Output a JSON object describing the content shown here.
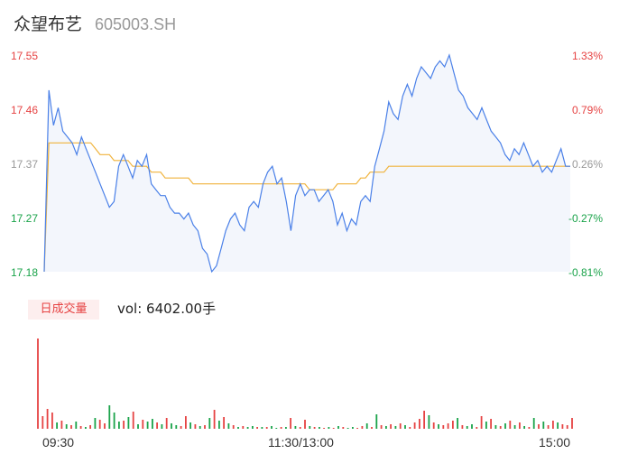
{
  "header": {
    "name": "众望布艺",
    "code": "605003.SH"
  },
  "colors": {
    "up": "#e64343",
    "down": "#1aa34a",
    "neutral": "#999999",
    "price_line": "#4a80e8",
    "avg_line": "#f0b33c"
  },
  "volume": {
    "badge": "日成交量",
    "text": "vol: 6402.00手"
  },
  "chart_data": {
    "type": "line",
    "title": "",
    "xlabel": "",
    "ylabel": "",
    "ylim": [
      17.18,
      17.55
    ],
    "y_ticks": [
      "17.55",
      "17.46",
      "17.37",
      "17.27",
      "17.18"
    ],
    "pct_ticks": [
      "1.33%",
      "0.79%",
      "0.26%",
      "-0.27%",
      "-0.81%"
    ],
    "x_ticks": [
      "09:30",
      "11:30/13:00",
      "15:00"
    ],
    "series": [
      {
        "name": "",
        "values": [
          17.18,
          17.49,
          17.43,
          17.46,
          17.42,
          17.41,
          17.4,
          17.38,
          17.41,
          17.39,
          17.37,
          17.35,
          17.33,
          17.31,
          17.29,
          17.3,
          17.36,
          17.38,
          17.36,
          17.34,
          17.37,
          17.36,
          17.38,
          17.33,
          17.32,
          17.31,
          17.31,
          17.29,
          17.28,
          17.28,
          17.27,
          17.28,
          17.26,
          17.25,
          17.22,
          17.21,
          17.18,
          17.19,
          17.22,
          17.25,
          17.27,
          17.28,
          17.26,
          17.25,
          17.29,
          17.3,
          17.29,
          17.33,
          17.35,
          17.36,
          17.33,
          17.34,
          17.3,
          17.25,
          17.31,
          17.33,
          17.31,
          17.32,
          17.32,
          17.3,
          17.31,
          17.32,
          17.3,
          17.26,
          17.28,
          17.25,
          17.27,
          17.26,
          17.3,
          17.31,
          17.3,
          17.36,
          17.39,
          17.42,
          17.47,
          17.45,
          17.44,
          17.48,
          17.5,
          17.48,
          17.51,
          17.53,
          17.52,
          17.51,
          17.53,
          17.54,
          17.53,
          17.55,
          17.52,
          17.49,
          17.48,
          17.46,
          17.45,
          17.44,
          17.46,
          17.44,
          17.42,
          17.41,
          17.4,
          17.38,
          17.37,
          17.39,
          17.38,
          17.4,
          17.38,
          17.36,
          17.37,
          17.35,
          17.36,
          17.35,
          17.37,
          17.39,
          17.36,
          17.36
        ]
      },
      {
        "name": "",
        "values": [
          17.18,
          17.4,
          17.4,
          17.4,
          17.4,
          17.4,
          17.4,
          17.4,
          17.4,
          17.4,
          17.4,
          17.39,
          17.38,
          17.38,
          17.38,
          17.37,
          17.37,
          17.37,
          17.37,
          17.36,
          17.36,
          17.36,
          17.36,
          17.35,
          17.35,
          17.35,
          17.34,
          17.34,
          17.34,
          17.34,
          17.34,
          17.34,
          17.33,
          17.33,
          17.33,
          17.33,
          17.33,
          17.33,
          17.33,
          17.33,
          17.33,
          17.33,
          17.33,
          17.33,
          17.33,
          17.33,
          17.33,
          17.33,
          17.33,
          17.33,
          17.33,
          17.33,
          17.33,
          17.33,
          17.33,
          17.33,
          17.33,
          17.32,
          17.32,
          17.32,
          17.32,
          17.32,
          17.32,
          17.33,
          17.33,
          17.33,
          17.33,
          17.33,
          17.34,
          17.34,
          17.35,
          17.35,
          17.35,
          17.35,
          17.36,
          17.36,
          17.36,
          17.36,
          17.36,
          17.36,
          17.36,
          17.36,
          17.36,
          17.36,
          17.36,
          17.36,
          17.36,
          17.36,
          17.36,
          17.36,
          17.36,
          17.36,
          17.36,
          17.36,
          17.36,
          17.36,
          17.36,
          17.36,
          17.36,
          17.36,
          17.36,
          17.36,
          17.36,
          17.36,
          17.36,
          17.36,
          17.36,
          17.36,
          17.36,
          17.36,
          17.36,
          17.36,
          17.36,
          17.36
        ]
      }
    ],
    "volume_bars": [
      {
        "v": 100,
        "d": 1
      },
      {
        "v": 14,
        "d": 1
      },
      {
        "v": 22,
        "d": 1
      },
      {
        "v": 18,
        "d": 1
      },
      {
        "v": 7,
        "d": -1
      },
      {
        "v": 9,
        "d": 1
      },
      {
        "v": 5,
        "d": -1
      },
      {
        "v": 4,
        "d": 1
      },
      {
        "v": 8,
        "d": -1
      },
      {
        "v": 3,
        "d": 1
      },
      {
        "v": 2,
        "d": -1
      },
      {
        "v": 4,
        "d": 1
      },
      {
        "v": 12,
        "d": -1
      },
      {
        "v": 10,
        "d": 1
      },
      {
        "v": 6,
        "d": 1
      },
      {
        "v": 26,
        "d": -1
      },
      {
        "v": 18,
        "d": -1
      },
      {
        "v": 8,
        "d": -1
      },
      {
        "v": 9,
        "d": 1
      },
      {
        "v": 13,
        "d": -1
      },
      {
        "v": 19,
        "d": 1
      },
      {
        "v": 5,
        "d": -1
      },
      {
        "v": 10,
        "d": 1
      },
      {
        "v": 8,
        "d": -1
      },
      {
        "v": 11,
        "d": -1
      },
      {
        "v": 7,
        "d": 1
      },
      {
        "v": 5,
        "d": -1
      },
      {
        "v": 12,
        "d": 1
      },
      {
        "v": 6,
        "d": -1
      },
      {
        "v": 4,
        "d": -1
      },
      {
        "v": 3,
        "d": 1
      },
      {
        "v": 14,
        "d": 1
      },
      {
        "v": 7,
        "d": -1
      },
      {
        "v": 5,
        "d": 1
      },
      {
        "v": 3,
        "d": -1
      },
      {
        "v": 4,
        "d": 1
      },
      {
        "v": 12,
        "d": -1
      },
      {
        "v": 21,
        "d": 1
      },
      {
        "v": 9,
        "d": -1
      },
      {
        "v": 13,
        "d": 1
      },
      {
        "v": 6,
        "d": -1
      },
      {
        "v": 4,
        "d": 1
      },
      {
        "v": 2,
        "d": -1
      },
      {
        "v": 3,
        "d": 1
      },
      {
        "v": 2,
        "d": -1
      },
      {
        "v": 3,
        "d": -1
      },
      {
        "v": 2,
        "d": 1
      },
      {
        "v": 2,
        "d": -1
      },
      {
        "v": 2,
        "d": 1
      },
      {
        "v": 3,
        "d": -1
      },
      {
        "v": 1,
        "d": -1
      },
      {
        "v": 2,
        "d": 1
      },
      {
        "v": 2,
        "d": -1
      },
      {
        "v": 12,
        "d": 1
      },
      {
        "v": 3,
        "d": -1
      },
      {
        "v": 2,
        "d": 1
      },
      {
        "v": 10,
        "d": 1
      },
      {
        "v": 3,
        "d": -1
      },
      {
        "v": 2,
        "d": 1
      },
      {
        "v": 2,
        "d": -1
      },
      {
        "v": 1,
        "d": 1
      },
      {
        "v": 2,
        "d": -1
      },
      {
        "v": 1,
        "d": 1
      },
      {
        "v": 3,
        "d": -1
      },
      {
        "v": 2,
        "d": 1
      },
      {
        "v": 1,
        "d": -1
      },
      {
        "v": 2,
        "d": -1
      },
      {
        "v": 1,
        "d": 1
      },
      {
        "v": 3,
        "d": 1
      },
      {
        "v": 6,
        "d": -1
      },
      {
        "v": 2,
        "d": 1
      },
      {
        "v": 16,
        "d": -1
      },
      {
        "v": 4,
        "d": 1
      },
      {
        "v": 3,
        "d": -1
      },
      {
        "v": 5,
        "d": 1
      },
      {
        "v": 3,
        "d": -1
      },
      {
        "v": 6,
        "d": 1
      },
      {
        "v": 4,
        "d": -1
      },
      {
        "v": 2,
        "d": 1
      },
      {
        "v": 7,
        "d": 1
      },
      {
        "v": 11,
        "d": 1
      },
      {
        "v": 20,
        "d": 1
      },
      {
        "v": 15,
        "d": -1
      },
      {
        "v": 7,
        "d": 1
      },
      {
        "v": 5,
        "d": -1
      },
      {
        "v": 4,
        "d": 1
      },
      {
        "v": 6,
        "d": 1
      },
      {
        "v": 9,
        "d": 1
      },
      {
        "v": 12,
        "d": -1
      },
      {
        "v": 4,
        "d": 1
      },
      {
        "v": 3,
        "d": -1
      },
      {
        "v": 5,
        "d": -1
      },
      {
        "v": 2,
        "d": 1
      },
      {
        "v": 14,
        "d": 1
      },
      {
        "v": 8,
        "d": -1
      },
      {
        "v": 11,
        "d": 1
      },
      {
        "v": 4,
        "d": -1
      },
      {
        "v": 3,
        "d": 1
      },
      {
        "v": 6,
        "d": -1
      },
      {
        "v": 9,
        "d": 1
      },
      {
        "v": 4,
        "d": -1
      },
      {
        "v": 7,
        "d": 1
      },
      {
        "v": 3,
        "d": -1
      },
      {
        "v": 2,
        "d": 1
      },
      {
        "v": 12,
        "d": -1
      },
      {
        "v": 5,
        "d": 1
      },
      {
        "v": 8,
        "d": -1
      },
      {
        "v": 4,
        "d": 1
      },
      {
        "v": 9,
        "d": 1
      },
      {
        "v": 7,
        "d": -1
      },
      {
        "v": 5,
        "d": 1
      },
      {
        "v": 4,
        "d": 1
      },
      {
        "v": 12,
        "d": 1
      }
    ]
  }
}
